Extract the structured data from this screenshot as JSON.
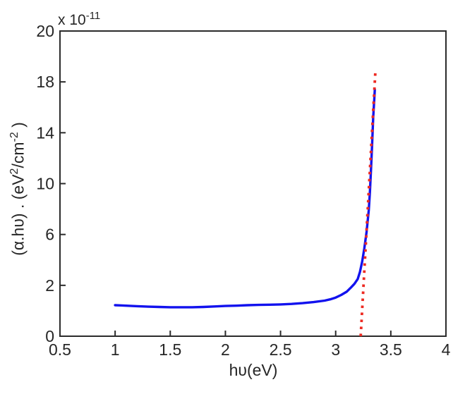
{
  "figure": {
    "background": "#ffffff",
    "axis_color": "#2b2b2b",
    "text_color": "#262626"
  },
  "chart_data": {
    "type": "line",
    "title": "",
    "xlabel": "hυ(eV)",
    "ylabel_parts": [
      {
        "t": "(α.hυ) . (eV"
      },
      {
        "t": "2",
        "sup": true
      },
      {
        "t": "/cm"
      },
      {
        "t": "-2",
        "sup": true
      },
      {
        "t": " )"
      }
    ],
    "y_offset_label_parts": [
      {
        "t": "x 10"
      },
      {
        "t": "-11",
        "sup": true
      }
    ],
    "x_range": [
      0.5,
      4
    ],
    "x_ticks": [
      0.5,
      1,
      1.5,
      2,
      2.5,
      3,
      3.5,
      4
    ],
    "x_tick_labels": [
      "0.5",
      "1",
      "1.5",
      "2",
      "2.5",
      "3",
      "3.5",
      "4"
    ],
    "y_tick_values": [
      0,
      2,
      6,
      10,
      14,
      18,
      20
    ],
    "y_tick_labels": [
      "0",
      "2",
      "6",
      "10",
      "14",
      "18",
      "20"
    ],
    "grid": false,
    "legend": "none",
    "series": [
      {
        "name": "absorption-curve",
        "color": "#1212ee",
        "points": [
          [
            1.0,
            1.22
          ],
          [
            1.05,
            1.21
          ],
          [
            1.1,
            1.2
          ],
          [
            1.15,
            1.19
          ],
          [
            1.2,
            1.18
          ],
          [
            1.3,
            1.16
          ],
          [
            1.4,
            1.15
          ],
          [
            1.5,
            1.14
          ],
          [
            1.6,
            1.14
          ],
          [
            1.7,
            1.14
          ],
          [
            1.8,
            1.15
          ],
          [
            1.9,
            1.17
          ],
          [
            2.0,
            1.19
          ],
          [
            2.1,
            1.2
          ],
          [
            2.2,
            1.22
          ],
          [
            2.3,
            1.23
          ],
          [
            2.4,
            1.24
          ],
          [
            2.5,
            1.25
          ],
          [
            2.6,
            1.27
          ],
          [
            2.7,
            1.3
          ],
          [
            2.8,
            1.34
          ],
          [
            2.9,
            1.4
          ],
          [
            2.95,
            1.45
          ],
          [
            3.0,
            1.52
          ],
          [
            3.05,
            1.62
          ],
          [
            3.1,
            1.75
          ],
          [
            3.14,
            1.92
          ],
          [
            3.17,
            2.12
          ],
          [
            3.2,
            2.5
          ],
          [
            3.22,
            3.05
          ],
          [
            3.24,
            3.85
          ],
          [
            3.26,
            4.9
          ],
          [
            3.28,
            6.2
          ],
          [
            3.3,
            7.9
          ],
          [
            3.31,
            9.3
          ],
          [
            3.32,
            11.0
          ],
          [
            3.33,
            13.0
          ],
          [
            3.34,
            15.2
          ],
          [
            3.35,
            16.6
          ],
          [
            3.355,
            17.4
          ]
        ]
      }
    ],
    "fit_line": {
      "name": "tauc-extrapolation-line",
      "color": "#ed2a22",
      "style": "dotted",
      "x1": 3.227,
      "y1": 0,
      "x2": 3.36,
      "y2": 18.4
    }
  }
}
